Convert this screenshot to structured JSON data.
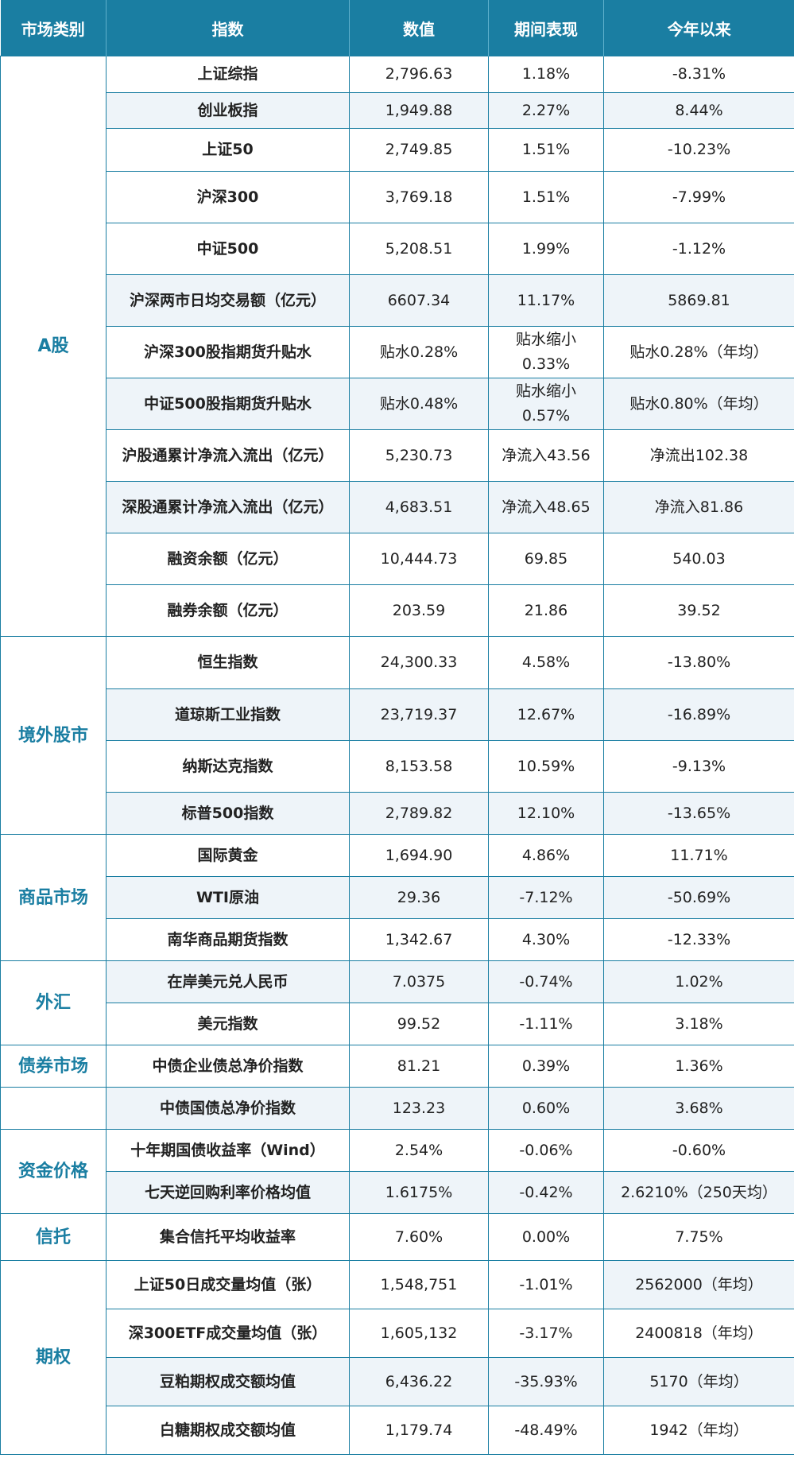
{
  "headers": [
    "市场类别",
    "指数",
    "数值",
    "期间表现",
    "今年以来"
  ],
  "groups": [
    {
      "category": "A股",
      "rows": [
        {
          "index": "上证综指",
          "value": "2,796.63",
          "period": "1.18%",
          "ytd": "-8.31%"
        },
        {
          "index": "创业板指",
          "value": "1,949.88",
          "period": "2.27%",
          "ytd": "8.44%"
        },
        {
          "index": "上证50",
          "value": "2,749.85",
          "period": "1.51%",
          "ytd": "-10.23%"
        },
        {
          "index": "沪深300",
          "value": "3,769.18",
          "period": "1.51%",
          "ytd": "-7.99%"
        },
        {
          "index": "中证500",
          "value": "5,208.51",
          "period": "1.99%",
          "ytd": "-1.12%"
        },
        {
          "index": "沪深两市日均交易额（亿元）",
          "value": "6607.34",
          "period": "11.17%",
          "ytd": "5869.81"
        },
        {
          "index": "沪深300股指期货升贴水",
          "value": "贴水0.28%",
          "period": "贴水缩小0.33%",
          "ytd": "贴水0.28%（年均）"
        },
        {
          "index": "中证500股指期货升贴水",
          "value": "贴水0.48%",
          "period": "贴水缩小0.57%",
          "ytd": "贴水0.80%（年均）"
        },
        {
          "index": "沪股通累计净流入流出（亿元）",
          "value": "5,230.73",
          "period": "净流入43.56",
          "ytd": "净流出102.38"
        },
        {
          "index": "深股通累计净流入流出（亿元）",
          "value": "4,683.51",
          "period": "净流入48.65",
          "ytd": "净流入81.86"
        },
        {
          "index": "融资余额（亿元）",
          "value": "10,444.73",
          "period": "69.85",
          "ytd": "540.03"
        },
        {
          "index": "融券余额（亿元）",
          "value": "203.59",
          "period": "21.86",
          "ytd": "39.52"
        }
      ]
    },
    {
      "category": "境外股市",
      "rows": [
        {
          "index": "恒生指数",
          "value": "24,300.33",
          "period": "4.58%",
          "ytd": "-13.80%"
        },
        {
          "index": "道琼斯工业指数",
          "value": "23,719.37",
          "period": "12.67%",
          "ytd": "-16.89%"
        },
        {
          "index": "纳斯达克指数",
          "value": "8,153.58",
          "period": "10.59%",
          "ytd": "-9.13%"
        },
        {
          "index": "标普500指数",
          "value": "2,789.82",
          "period": "12.10%",
          "ytd": "-13.65%"
        }
      ]
    },
    {
      "category": "商品市场",
      "rows": [
        {
          "index": "国际黄金",
          "value": "1,694.90",
          "period": "4.86%",
          "ytd": "11.71%"
        },
        {
          "index": "WTI原油",
          "value": "29.36",
          "period": "-7.12%",
          "ytd": "-50.69%"
        },
        {
          "index": "南华商品期货指数",
          "value": "1,342.67",
          "period": "4.30%",
          "ytd": "-12.33%"
        }
      ]
    },
    {
      "category": "外汇",
      "rows": [
        {
          "index": "在岸美元兑人民币",
          "value": "7.0375",
          "period": "-0.74%",
          "ytd": "1.02%"
        },
        {
          "index": "美元指数",
          "value": "99.52",
          "period": "-1.11%",
          "ytd": "3.18%"
        }
      ]
    },
    {
      "category": "债券市场",
      "rows": [
        {
          "index": "中债企业债总净价指数",
          "value": "81.21",
          "period": "0.39%",
          "ytd": "1.36%"
        }
      ]
    },
    {
      "category": "",
      "rows": [
        {
          "index": "中债国债总净价指数",
          "value": "123.23",
          "period": "0.60%",
          "ytd": "3.68%"
        }
      ]
    },
    {
      "category": "资金价格",
      "rows": [
        {
          "index": "十年期国债收益率（Wind）",
          "value": "2.54%",
          "period": "-0.06%",
          "ytd": "-0.60%"
        },
        {
          "index": "七天逆回购利率价格均值",
          "value": "1.6175%",
          "period": "-0.42%",
          "ytd": "2.6210%（250天均）"
        }
      ]
    },
    {
      "category": "信托",
      "rows": [
        {
          "index": "集合信托平均收益率",
          "value": "7.60%",
          "period": "0.00%",
          "ytd": "7.75%"
        }
      ]
    },
    {
      "category": "期权",
      "rows": [
        {
          "index": "上证50日成交量均值（张）",
          "value": "1,548,751",
          "period": "-1.01%",
          "ytd": "2562000（年均）"
        },
        {
          "index": "深300ETF成交量均值（张）",
          "value": "1,605,132",
          "period": "-3.17%",
          "ytd": "2400818（年均）"
        },
        {
          "index": "豆粕期权成交额均值",
          "value": "6,436.22",
          "period": "-35.93%",
          "ytd": "5170（年均）"
        },
        {
          "index": "白糖期权成交额均值",
          "value": "1,179.74",
          "period": "-48.49%",
          "ytd": "1942（年均）"
        }
      ]
    }
  ]
}
